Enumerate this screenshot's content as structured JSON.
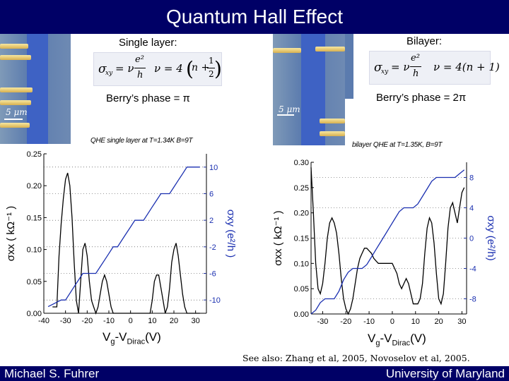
{
  "title": "Quantum Hall Effect",
  "left": {
    "heading": "Single layer:",
    "formula_lhs": "σ",
    "formula_lhs_sub": "xy",
    "formula_eq": "= ν",
    "formula_frac_num": "e²",
    "formula_frac_den": "h",
    "formula_nu": "ν = 4",
    "formula_paren_n": "n +",
    "formula_half_num": "1",
    "formula_half_den": "2",
    "berry": "Berry’s phase = π",
    "scale_label": "5 μm",
    "plot_caption": "QHE single layer at T=1.34K B=9T",
    "left_ticks": [
      "0.25",
      "0.20",
      "0.15",
      "0.10",
      "0.05",
      "0.00"
    ],
    "right_ticks": [
      "10",
      "6",
      "2",
      "-2",
      "-6",
      "-10"
    ],
    "x_ticks": [
      "-40",
      "-30",
      "-20",
      "-10",
      "0",
      "10",
      "20",
      "30"
    ],
    "ylabel": "σxx ( kΩ⁻¹ )",
    "ylabel_right": "σxy (e²/h )",
    "xlabel_main": "V",
    "xlabel_sub1": "g",
    "xlabel_mid": "-V",
    "xlabel_sub2": "Dirac",
    "xlabel_end": "(V)"
  },
  "right": {
    "heading": "Bilayer:",
    "formula_lhs": "σ",
    "formula_lhs_sub": "xy",
    "formula_eq": "= ν",
    "formula_frac_num": "e²",
    "formula_frac_den": "h",
    "formula_nu": "ν = 4(n + 1)",
    "berry": "Berry’s phase = 2π",
    "scale_label": "5 μm",
    "plot_caption": "bilayer QHE at T=1.35K, B=9T",
    "left_ticks": [
      "0.30",
      "0.25",
      "0.20",
      "0.15",
      "0.10",
      "0.05",
      "0.00"
    ],
    "right_ticks": [
      "8",
      "4",
      "0",
      "-4",
      "-8"
    ],
    "x_ticks": [
      "-30",
      "-20",
      "-10",
      "0",
      "10",
      "20",
      "30"
    ],
    "ylabel": "σxx ( kΩ⁻¹ )",
    "ylabel_right": "σxy (e²/h)",
    "xlabel_main": "V",
    "xlabel_sub1": "g",
    "xlabel_mid": "-V",
    "xlabel_sub2": "Dirac",
    "xlabel_end": "(V)"
  },
  "see_also": "See also: Zhang et al, 2005, Novoselov et al, 2005.",
  "footer_left": "Michael S. Fuhrer",
  "footer_right": "University of Maryland",
  "chart_data": [
    {
      "type": "line",
      "title": "QHE single layer at T=1.34K B=9T",
      "xlabel": "Vg-VDirac(V)",
      "ylabel": "σxx ( kΩ⁻¹ )",
      "y2label": "σxy (e²/h )",
      "xlim": [
        -40,
        35
      ],
      "ylim": [
        0,
        0.25
      ],
      "y2lim": [
        -12,
        12
      ],
      "series": [
        {
          "name": "σxx",
          "axis": "left",
          "color": "#000000",
          "x": [
            -36,
            -34,
            -33,
            -32,
            -31,
            -30,
            -29,
            -28,
            -27,
            -26,
            -25,
            -24,
            -23,
            -22,
            -21,
            -20,
            -19,
            -18,
            -17,
            -16,
            -15,
            -14,
            -13,
            -12,
            -11,
            -10,
            -9,
            -8,
            -7,
            -6,
            -5,
            -4,
            -3,
            -2,
            -1,
            0,
            1,
            2,
            3,
            4,
            5,
            6,
            7,
            8,
            9,
            10,
            11,
            12,
            13,
            14,
            15,
            16,
            17,
            18,
            19,
            20,
            21,
            22,
            23,
            24,
            25,
            26,
            27,
            28,
            29,
            30,
            31,
            32
          ],
          "values": [
            0.01,
            0.01,
            0.09,
            0.14,
            0.18,
            0.21,
            0.22,
            0.2,
            0.15,
            0.08,
            0.02,
            0.0,
            0.05,
            0.1,
            0.11,
            0.09,
            0.05,
            0.02,
            0.01,
            0.0,
            0.01,
            0.03,
            0.05,
            0.06,
            0.05,
            0.03,
            0.01,
            0.0,
            0.0,
            0.0,
            0.0,
            0.0,
            0.0,
            0.0,
            0.0,
            0.0,
            0.0,
            0.0,
            0.0,
            0.0,
            0.0,
            0.0,
            0.0,
            0.0,
            0.0,
            0.02,
            0.05,
            0.06,
            0.06,
            0.04,
            0.02,
            0.0,
            0.01,
            0.04,
            0.08,
            0.1,
            0.11,
            0.09,
            0.06,
            0.03,
            0.01,
            0.0,
            0.0,
            0.0,
            0.0,
            0.0,
            0.0,
            0.0
          ]
        },
        {
          "name": "σxy",
          "axis": "right",
          "color": "#1a2fb0",
          "x": [
            -38,
            -35,
            -32,
            -30,
            -28,
            -26,
            -24,
            -22,
            -20,
            -18,
            -16,
            -14,
            -12,
            -10,
            -8,
            -6,
            -4,
            -2,
            0,
            2,
            4,
            6,
            8,
            10,
            12,
            14,
            16,
            18,
            20,
            22,
            24,
            26,
            28,
            30,
            32
          ],
          "values": [
            -11,
            -10.5,
            -10,
            -10,
            -9,
            -8,
            -7,
            -6,
            -6,
            -6,
            -6,
            -5,
            -4,
            -3,
            -2,
            -2,
            -1,
            0,
            1,
            2,
            2,
            2,
            3,
            4,
            5,
            6,
            6,
            6,
            7,
            8,
            9,
            10,
            10,
            10,
            10
          ]
        }
      ]
    },
    {
      "type": "line",
      "title": "bilayer QHE at T=1.35K, B=9T",
      "xlabel": "Vg-VDirac(V)",
      "ylabel": "σxx ( kΩ⁻¹ )",
      "y2label": "σxy (e²/h)",
      "xlim": [
        -35,
        32
      ],
      "ylim": [
        0,
        0.3
      ],
      "y2lim": [
        -10,
        10
      ],
      "series": [
        {
          "name": "σxx",
          "axis": "left",
          "color": "#000000",
          "x": [
            -35,
            -34,
            -33,
            -32,
            -31,
            -30,
            -29,
            -28,
            -27,
            -26,
            -25,
            -24,
            -23,
            -22,
            -21,
            -20,
            -19,
            -18,
            -17,
            -16,
            -15,
            -14,
            -13,
            -12,
            -11,
            -10,
            -9,
            -8,
            -7,
            -6,
            -5,
            -4,
            -3,
            -2,
            -1,
            0,
            1,
            2,
            3,
            4,
            5,
            6,
            7,
            8,
            9,
            10,
            11,
            12,
            13,
            14,
            15,
            16,
            17,
            18,
            19,
            20,
            21,
            22,
            23,
            24,
            25,
            26,
            27,
            28,
            29,
            30,
            31
          ],
          "values": [
            0.29,
            0.2,
            0.1,
            0.05,
            0.04,
            0.06,
            0.1,
            0.15,
            0.18,
            0.19,
            0.18,
            0.16,
            0.12,
            0.07,
            0.03,
            0.01,
            0.0,
            0.01,
            0.03,
            0.06,
            0.09,
            0.11,
            0.12,
            0.13,
            0.13,
            0.125,
            0.12,
            0.11,
            0.105,
            0.1,
            0.1,
            0.1,
            0.1,
            0.1,
            0.1,
            0.1,
            0.09,
            0.08,
            0.06,
            0.05,
            0.06,
            0.07,
            0.06,
            0.04,
            0.02,
            0.02,
            0.02,
            0.03,
            0.06,
            0.12,
            0.17,
            0.19,
            0.18,
            0.14,
            0.08,
            0.03,
            0.02,
            0.04,
            0.1,
            0.17,
            0.21,
            0.22,
            0.2,
            0.18,
            0.21,
            0.24,
            0.25
          ]
        },
        {
          "name": "σxy",
          "axis": "right",
          "color": "#1a2fb0",
          "x": [
            -35,
            -33,
            -31,
            -29,
            -27,
            -25,
            -23,
            -21,
            -19,
            -17,
            -15,
            -13,
            -11,
            -9,
            -7,
            -5,
            -3,
            -1,
            1,
            3,
            5,
            7,
            9,
            11,
            13,
            15,
            17,
            19,
            21,
            23,
            25,
            27,
            29,
            31
          ],
          "values": [
            -10,
            -9.5,
            -8.5,
            -8,
            -8,
            -8,
            -7,
            -5.5,
            -4.5,
            -4,
            -4,
            -4,
            -3.5,
            -2.5,
            -1.5,
            -0.5,
            0.5,
            1.5,
            2.5,
            3.5,
            4,
            4,
            4,
            4.5,
            5.5,
            6.5,
            7.5,
            8,
            8,
            8,
            8,
            8,
            8.5,
            9
          ]
        }
      ]
    }
  ]
}
